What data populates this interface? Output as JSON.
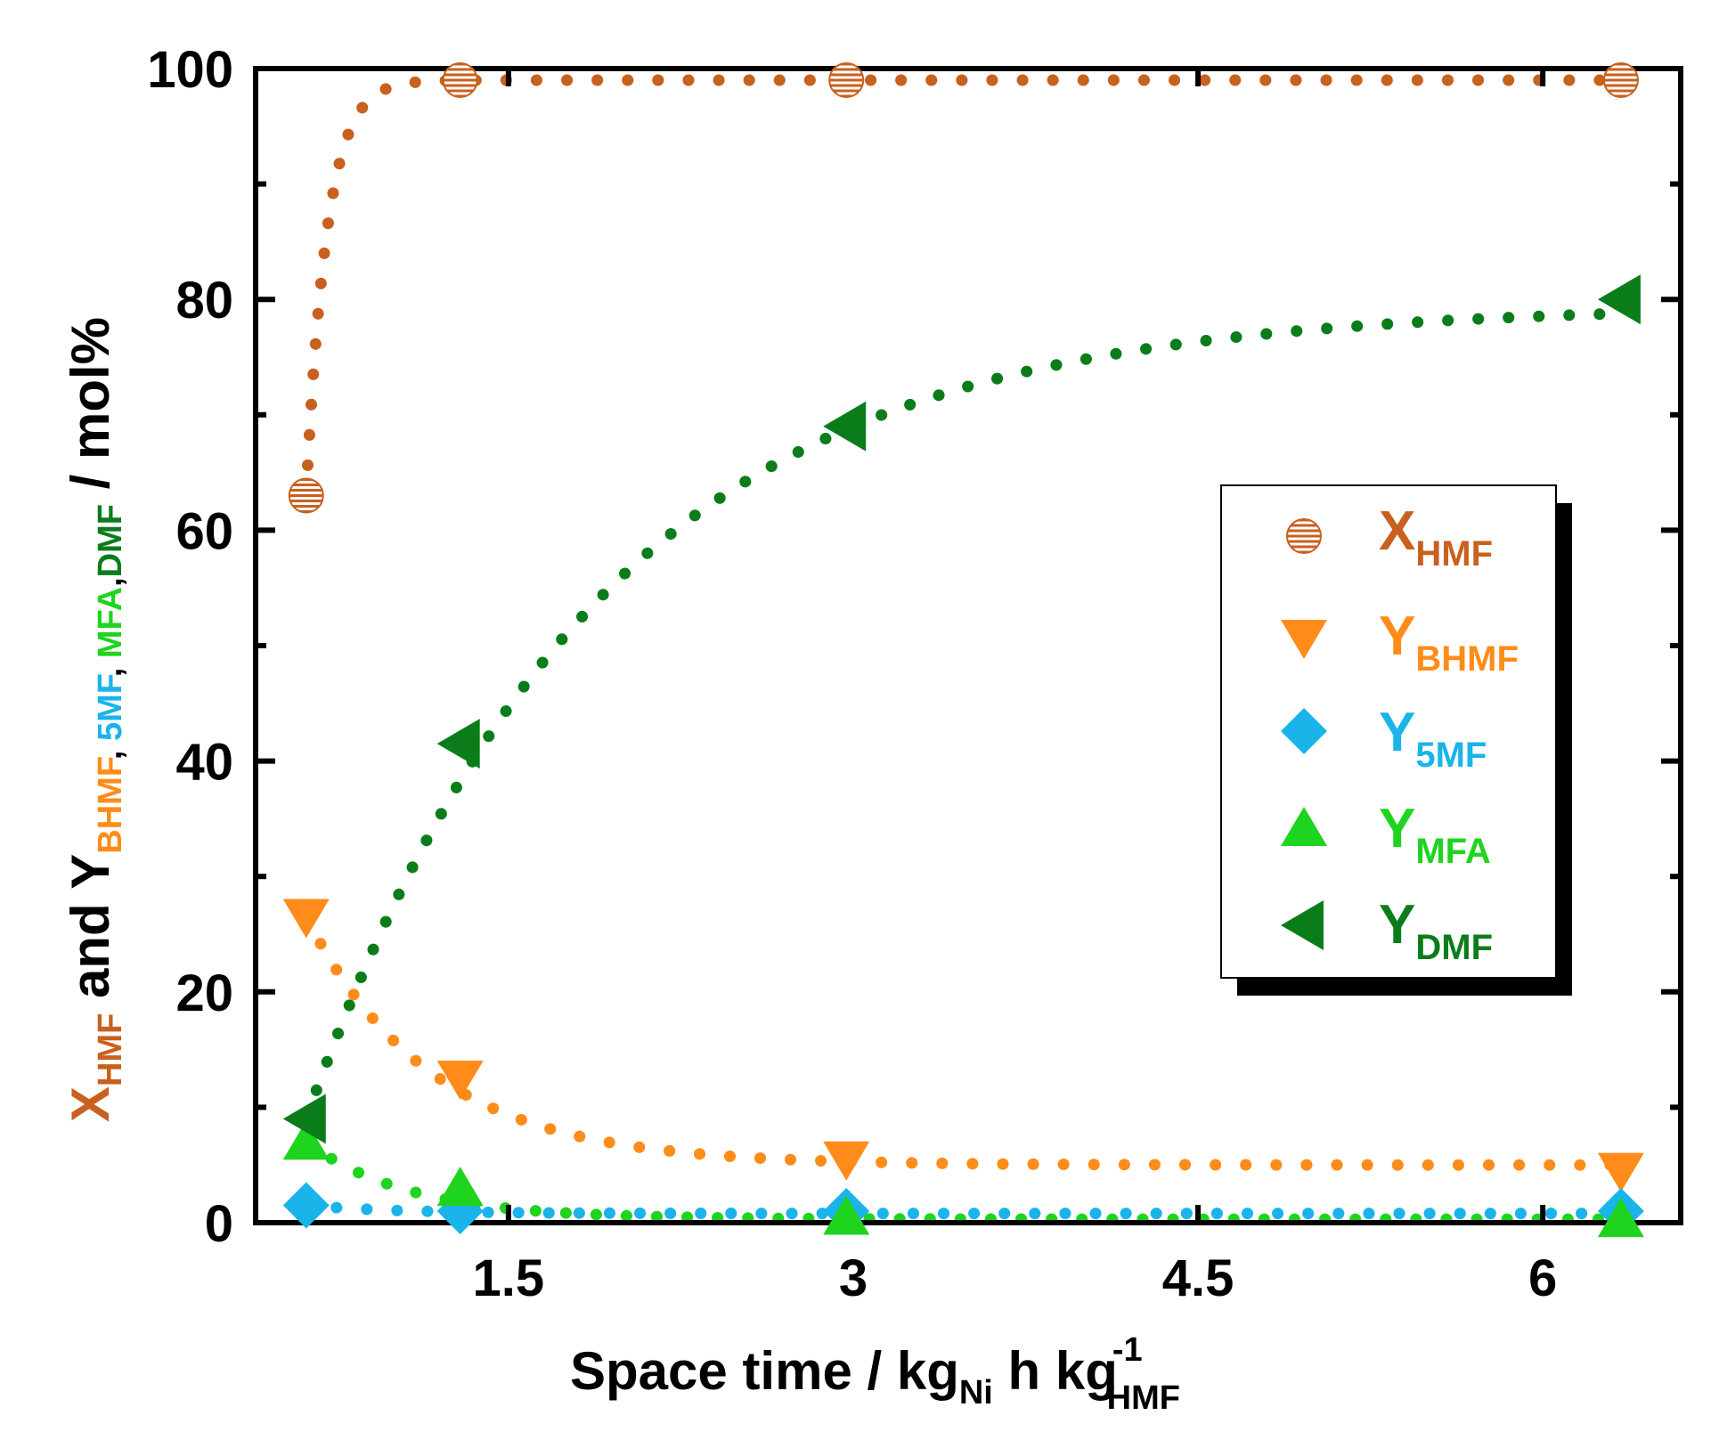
{
  "chart_data": {
    "type": "scatter",
    "xlabel": {
      "main": "Space time /  kg",
      "sub1": "Ni",
      "mid": " h  kg",
      "sup": "-1",
      "sub2": "HMF"
    },
    "ylabel": {
      "x": "X",
      "x_sub": "HMF",
      "and": " and Y",
      "sub_bhmf": "BHMF",
      "sep1": ", ",
      "sub_5mf": "5MF",
      "sep2": ", ",
      "sub_mfa": "MFA",
      "sep3": ",",
      "sub_dmf": "DMF",
      "unit": " / mol%"
    },
    "xlim": [
      0.4,
      6.6
    ],
    "ylim": [
      0,
      100
    ],
    "xticks": [
      1.5,
      3,
      4.5,
      6
    ],
    "xtick_labels": [
      "1.5",
      "3",
      "4.5",
      "6"
    ],
    "yticks": [
      0,
      20,
      40,
      60,
      80,
      100
    ],
    "ytick_labels": [
      "0",
      "20",
      "40",
      "60",
      "80",
      "100"
    ],
    "x": [
      0.62,
      1.29,
      2.97,
      6.34
    ],
    "series": [
      {
        "name": "X_HMF",
        "label_main": "X",
        "label_sub": "HMF",
        "marker": "striped-circle",
        "color": "#c8601e",
        "values": [
          63,
          99,
          99,
          99
        ],
        "fit": "conv"
      },
      {
        "name": "Y_BHMF",
        "label_main": "Y",
        "label_sub": "BHMF",
        "marker": "triangle-down",
        "color": "#ff8c1a",
        "values": [
          26.5,
          12.5,
          5.5,
          4.5
        ],
        "fit": "bhmf"
      },
      {
        "name": "Y_5MF",
        "label_main": "Y",
        "label_sub": "5MF",
        "marker": "diamond",
        "color": "#1ab4ea",
        "values": [
          1.5,
          1,
          1,
          1
        ],
        "fit": "fmf"
      },
      {
        "name": "Y_MFA",
        "label_main": "Y",
        "label_sub": "MFA",
        "marker": "triangle-up",
        "color": "#1ed41e",
        "values": [
          7,
          3,
          0.5,
          0.3
        ],
        "fit": "mfa"
      },
      {
        "name": "Y_DMF",
        "label_main": "Y",
        "label_sub": "DMF",
        "marker": "triangle-left",
        "color": "#0a7d1a",
        "values": [
          9,
          41.5,
          69,
          80
        ],
        "fit": "dmf"
      }
    ],
    "legend_position": "right-middle"
  }
}
